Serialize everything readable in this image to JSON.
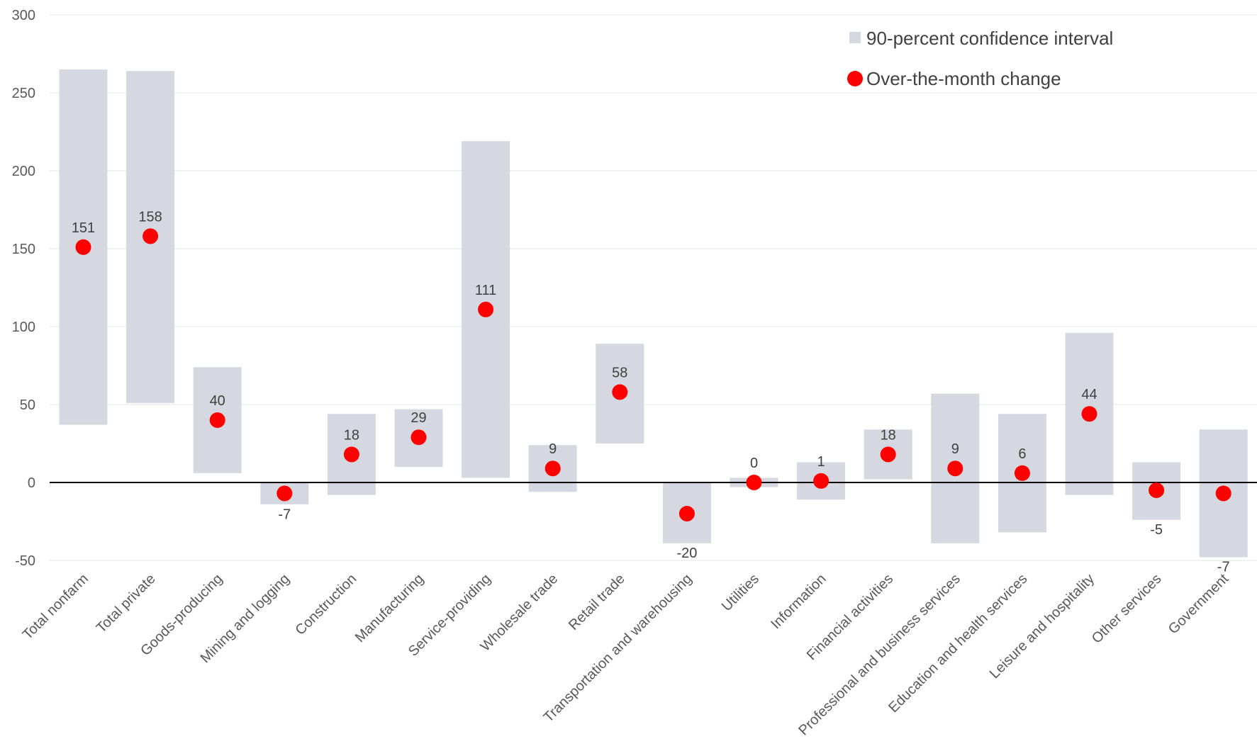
{
  "chart_data": {
    "type": "scatter",
    "ylim": [
      -50,
      300
    ],
    "yticks": [
      300,
      250,
      200,
      150,
      100,
      50,
      0,
      -50
    ],
    "grid": true,
    "legend_position": "top-right",
    "categories": [
      "Total nonfarm",
      "Total private",
      "Goods-producing",
      "Mining and logging",
      "Construction",
      "Manufacturing",
      "Service-providing",
      "Wholesale trade",
      "Retail trade",
      "Transportation and warehousing",
      "Utilities",
      "Information",
      "Financial activities",
      "Professional and business services",
      "Education and health services",
      "Leisure and hospitality",
      "Other services",
      "Government"
    ],
    "series": [
      {
        "name": "90-percent confidence interval",
        "kind": "range",
        "color": "#d5d8e0",
        "low": [
          37,
          51,
          6,
          -14,
          -8,
          10,
          3,
          -6,
          25,
          -39,
          -3,
          -11,
          2,
          -39,
          -32,
          -8,
          -24,
          -48
        ],
        "high": [
          265,
          264,
          74,
          0,
          44,
          47,
          219,
          24,
          89,
          0,
          3,
          13,
          34,
          57,
          44,
          96,
          13,
          34
        ]
      },
      {
        "name": "Over-the-month change",
        "kind": "point",
        "color": "#ff0000",
        "values": [
          151,
          158,
          40,
          -7,
          18,
          29,
          111,
          9,
          58,
          -20,
          0,
          1,
          18,
          9,
          6,
          44,
          -5,
          -7
        ],
        "labels": [
          "151",
          "158",
          "40",
          "-7",
          "18",
          "29",
          "111",
          "9",
          "58",
          "-20",
          "0",
          "1",
          "18",
          "9",
          "6",
          "44",
          "-5",
          "-7"
        ]
      }
    ]
  }
}
